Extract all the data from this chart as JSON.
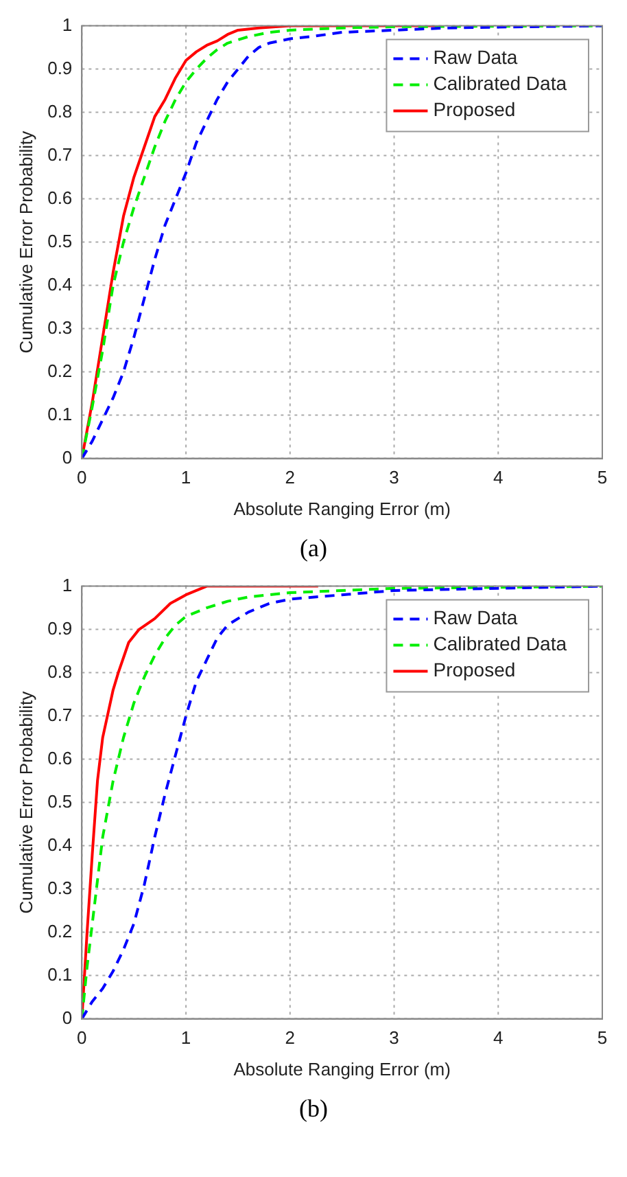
{
  "chart_data": [
    {
      "type": "line",
      "xlabel": "Absolute Ranging Error (m)",
      "ylabel": "Cumulative Error Probability",
      "annotations": [
        "(a)"
      ],
      "xlim": [
        0,
        5
      ],
      "xticks": [
        0,
        1,
        2,
        3,
        4,
        5
      ],
      "ylim": [
        0,
        1
      ],
      "yticks": [
        0,
        0.1,
        0.2,
        0.3,
        0.4,
        0.5,
        0.6,
        0.7,
        0.8,
        0.9,
        1
      ],
      "grid": true,
      "legend": "top right",
      "marker": "none",
      "series": [
        {
          "name": "Raw Data",
          "color": "#0000ff",
          "line_style": "dashed",
          "x": [
            0,
            0.1,
            0.2,
            0.3,
            0.4,
            0.5,
            0.6,
            0.7,
            0.8,
            0.9,
            1.0,
            1.1,
            1.2,
            1.3,
            1.4,
            1.5,
            1.6,
            1.7,
            1.8,
            2.0,
            2.2,
            2.5,
            3,
            3.5,
            4,
            5
          ],
          "values": [
            0,
            0.04,
            0.09,
            0.14,
            0.2,
            0.28,
            0.37,
            0.46,
            0.54,
            0.6,
            0.66,
            0.73,
            0.78,
            0.83,
            0.87,
            0.9,
            0.93,
            0.95,
            0.96,
            0.97,
            0.975,
            0.985,
            0.99,
            0.995,
            0.997,
            1
          ]
        },
        {
          "name": "Calibrated Data",
          "color": "#00ee00",
          "line_style": "dashed",
          "x": [
            0,
            0.1,
            0.2,
            0.3,
            0.4,
            0.5,
            0.6,
            0.7,
            0.8,
            0.9,
            1.0,
            1.1,
            1.2,
            1.3,
            1.4,
            1.6,
            1.8,
            2.0,
            2.5,
            3,
            5
          ],
          "values": [
            0,
            0.12,
            0.25,
            0.4,
            0.5,
            0.58,
            0.65,
            0.72,
            0.78,
            0.83,
            0.87,
            0.9,
            0.925,
            0.945,
            0.96,
            0.975,
            0.985,
            0.99,
            0.995,
            0.998,
            1
          ]
        },
        {
          "name": "Proposed",
          "color": "#ff0000",
          "line_style": "solid",
          "x": [
            0,
            0.1,
            0.2,
            0.3,
            0.4,
            0.5,
            0.6,
            0.7,
            0.8,
            0.9,
            1.0,
            1.1,
            1.2,
            1.3,
            1.4,
            1.5,
            1.7,
            2.0,
            3.4
          ],
          "values": [
            0,
            0.13,
            0.28,
            0.43,
            0.56,
            0.65,
            0.72,
            0.79,
            0.83,
            0.88,
            0.92,
            0.94,
            0.955,
            0.965,
            0.98,
            0.99,
            0.995,
            1,
            1
          ]
        }
      ]
    },
    {
      "type": "line",
      "xlabel": "Absolute Ranging Error (m)",
      "ylabel": "Cumulative Error Probability",
      "annotations": [
        "(b)"
      ],
      "xlim": [
        0,
        5
      ],
      "xticks": [
        0,
        1,
        2,
        3,
        4,
        5
      ],
      "ylim": [
        0,
        1
      ],
      "yticks": [
        0,
        0.1,
        0.2,
        0.3,
        0.4,
        0.5,
        0.6,
        0.7,
        0.8,
        0.9,
        1
      ],
      "grid": true,
      "legend": "top right",
      "marker": "none",
      "series": [
        {
          "name": "Raw Data",
          "color": "#0000ff",
          "line_style": "dashed",
          "x": [
            0,
            0.1,
            0.2,
            0.3,
            0.4,
            0.5,
            0.6,
            0.7,
            0.8,
            0.9,
            1.0,
            1.1,
            1.2,
            1.3,
            1.4,
            1.6,
            1.8,
            2.0,
            2.5,
            3,
            4,
            5
          ],
          "values": [
            0,
            0.04,
            0.07,
            0.11,
            0.16,
            0.22,
            0.31,
            0.42,
            0.52,
            0.61,
            0.7,
            0.78,
            0.83,
            0.88,
            0.91,
            0.94,
            0.96,
            0.97,
            0.98,
            0.99,
            0.995,
            1
          ]
        },
        {
          "name": "Calibrated Data",
          "color": "#00ee00",
          "line_style": "dashed",
          "x": [
            0,
            0.05,
            0.1,
            0.15,
            0.2,
            0.3,
            0.4,
            0.5,
            0.6,
            0.7,
            0.8,
            0.9,
            1.0,
            1.2,
            1.4,
            1.6,
            2.0,
            3,
            5
          ],
          "values": [
            0,
            0.12,
            0.22,
            0.32,
            0.42,
            0.55,
            0.65,
            0.73,
            0.79,
            0.84,
            0.88,
            0.91,
            0.93,
            0.95,
            0.965,
            0.975,
            0.985,
            0.995,
            1
          ]
        },
        {
          "name": "Proposed",
          "color": "#ff0000",
          "line_style": "solid",
          "x": [
            0,
            0.05,
            0.1,
            0.15,
            0.2,
            0.3,
            0.35,
            0.45,
            0.55,
            0.7,
            0.85,
            1.0,
            1.2,
            2.27
          ],
          "values": [
            0,
            0.2,
            0.38,
            0.55,
            0.65,
            0.76,
            0.8,
            0.87,
            0.9,
            0.925,
            0.96,
            0.98,
            1,
            1
          ]
        }
      ]
    }
  ]
}
